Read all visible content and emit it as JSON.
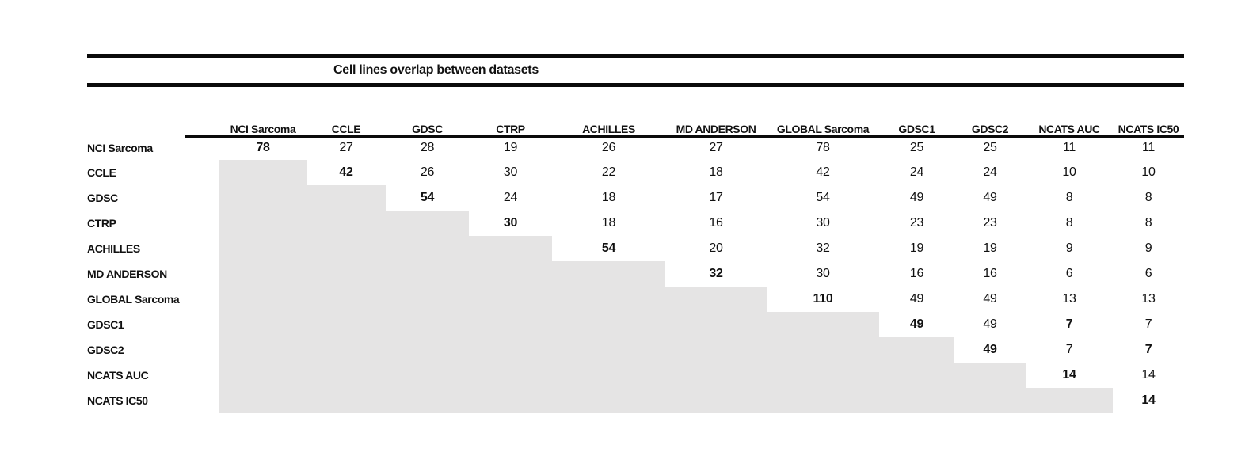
{
  "title": "Cell lines overlap between datasets",
  "colors": {
    "shade": "#e5e4e4",
    "rule": "#0a0a0a",
    "text": "#111111"
  },
  "chart_data": {
    "type": "table",
    "title": "Cell lines overlap between datasets",
    "layout": "upper-triangular overlap matrix; lower triangle shaded gray; diagonal values bold",
    "columns": [
      "NCI Sarcoma",
      "CCLE",
      "GDSC",
      "CTRP",
      "ACHILLES",
      "MD ANDERSON",
      "GLOBAL Sarcoma",
      "GDSC1",
      "GDSC2",
      "NCATS AUC",
      "NCATS IC50"
    ],
    "rows": [
      {
        "label": "NCI Sarcoma",
        "values": [
          78,
          27,
          28,
          19,
          26,
          27,
          78,
          25,
          25,
          11,
          11
        ],
        "bold": [
          0
        ]
      },
      {
        "label": "CCLE",
        "values": [
          null,
          42,
          26,
          30,
          22,
          18,
          42,
          24,
          24,
          10,
          10
        ],
        "bold": [
          1
        ]
      },
      {
        "label": "GDSC",
        "values": [
          null,
          null,
          54,
          24,
          18,
          17,
          54,
          49,
          49,
          8,
          8
        ],
        "bold": [
          2
        ]
      },
      {
        "label": "CTRP",
        "values": [
          null,
          null,
          null,
          30,
          18,
          16,
          30,
          23,
          23,
          8,
          8
        ],
        "bold": [
          3
        ]
      },
      {
        "label": "ACHILLES",
        "values": [
          null,
          null,
          null,
          null,
          54,
          20,
          32,
          19,
          19,
          9,
          9
        ],
        "bold": [
          4
        ]
      },
      {
        "label": "MD ANDERSON",
        "values": [
          null,
          null,
          null,
          null,
          null,
          32,
          30,
          16,
          16,
          6,
          6
        ],
        "bold": [
          5
        ]
      },
      {
        "label": "GLOBAL Sarcoma",
        "values": [
          null,
          null,
          null,
          null,
          null,
          null,
          110,
          49,
          49,
          13,
          13
        ],
        "bold": [
          6
        ]
      },
      {
        "label": "GDSC1",
        "values": [
          null,
          null,
          null,
          null,
          null,
          null,
          null,
          49,
          49,
          7,
          7
        ],
        "bold": [
          7,
          9
        ]
      },
      {
        "label": "GDSC2",
        "values": [
          null,
          null,
          null,
          null,
          null,
          null,
          null,
          null,
          49,
          7,
          7
        ],
        "bold": [
          8,
          10
        ]
      },
      {
        "label": "NCATS AUC",
        "values": [
          null,
          null,
          null,
          null,
          null,
          null,
          null,
          null,
          null,
          14,
          14
        ],
        "bold": [
          9
        ]
      },
      {
        "label": "NCATS IC50",
        "values": [
          null,
          null,
          null,
          null,
          null,
          null,
          null,
          null,
          null,
          null,
          14
        ],
        "bold": [
          10
        ]
      }
    ]
  }
}
